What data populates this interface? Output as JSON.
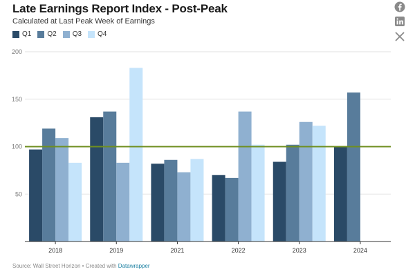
{
  "header": {
    "title": "Late Earnings Report Index - Post-Peak",
    "subtitle": "Calculated at Last Peak Week of Earnings"
  },
  "share": {
    "icons": [
      "facebook-icon",
      "linkedin-icon",
      "x-icon"
    ]
  },
  "footer": {
    "source_text": "Source: Wall Street Horizon • Created with ",
    "link_text": "Datawrapper"
  },
  "colors": {
    "Q1": "#2a4a67",
    "Q2": "#587c9b",
    "Q3": "#8fb0d0",
    "Q4": "#c5e4fb",
    "reference_line": "#6f8f1f",
    "link": "#1d81a2"
  },
  "chart_data": {
    "type": "bar",
    "title": "Late Earnings Report Index - Post-Peak",
    "subtitle": "Calculated at Last Peak Week of Earnings",
    "categories": [
      "2018",
      "2019",
      "2021",
      "2022",
      "2023",
      "2024"
    ],
    "series": [
      {
        "name": "Q1",
        "values": [
          97,
          131,
          82,
          70,
          84,
          100
        ]
      },
      {
        "name": "Q2",
        "values": [
          119,
          137,
          86,
          67,
          102,
          157
        ]
      },
      {
        "name": "Q3",
        "values": [
          109,
          83,
          73,
          137,
          126,
          null
        ]
      },
      {
        "name": "Q4",
        "values": [
          83,
          183,
          87,
          102,
          122,
          null
        ]
      }
    ],
    "ylim": [
      0,
      200
    ],
    "yticks": [
      "50",
      "100",
      "150",
      "200"
    ],
    "reference_line": 100,
    "legend": "top-left",
    "grid": true
  }
}
